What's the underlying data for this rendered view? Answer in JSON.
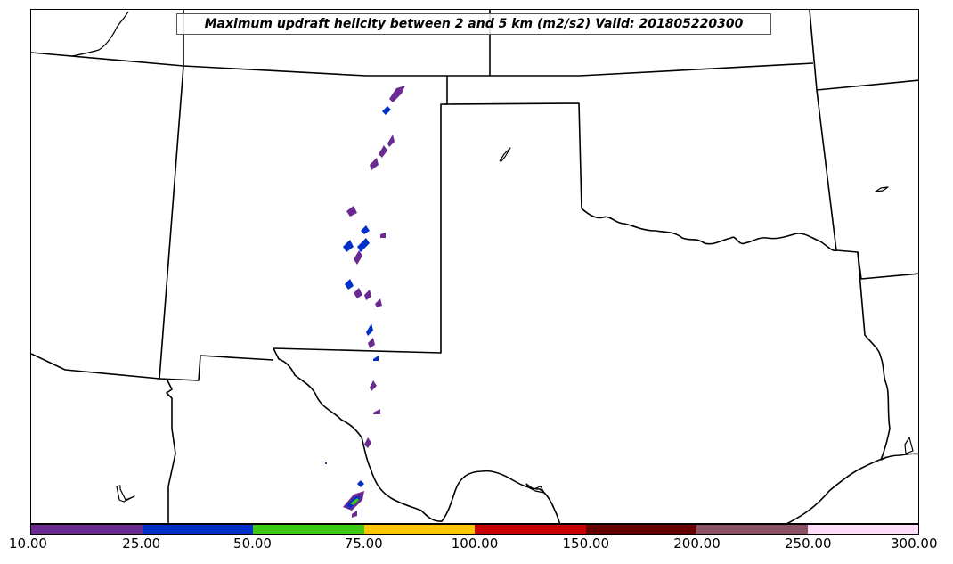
{
  "title": "Maximum updraft helicity between 2 and 5 km (m2/s2) Valid: 201805220300",
  "colorbar": {
    "ticks": [
      "10.00",
      "25.00",
      "50.00",
      "75.00",
      "100.00",
      "150.00",
      "200.00",
      "250.00",
      "300.00"
    ],
    "colors": [
      "#6a2a92",
      "#0030c8",
      "#3cc814",
      "#ffc800",
      "#c80000",
      "#640000",
      "#8c5064",
      "#ffdcf8"
    ]
  },
  "map": {
    "region": "Southern Plains, United States",
    "border_color": "#000000"
  }
}
